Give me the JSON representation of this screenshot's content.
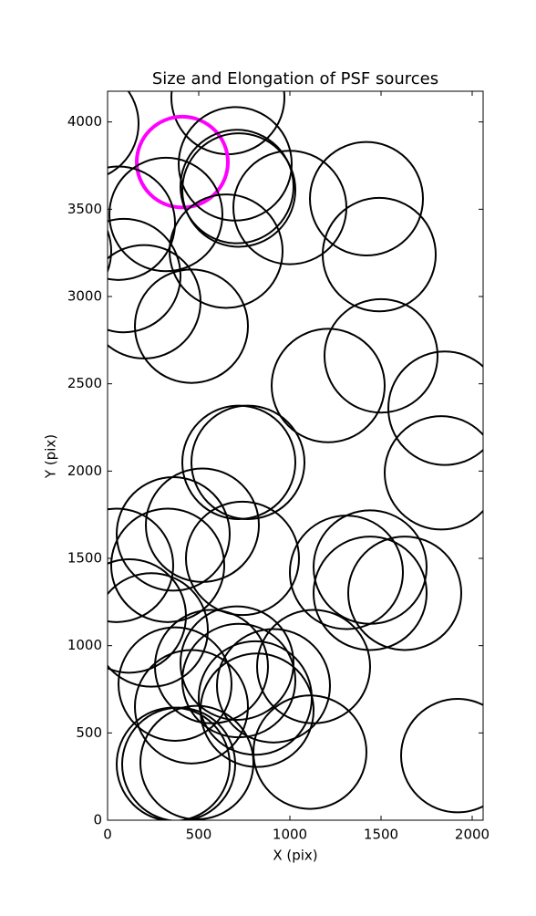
{
  "chart_data": {
    "type": "ellipse",
    "title": "Size and Elongation of PSF sources",
    "xlabel": "X (pix)",
    "ylabel": "Y (pix)",
    "x": [
      660,
      -140,
      410,
      700,
      710,
      720,
      1000,
      1420,
      320,
      60,
      650,
      1490,
      -290,
      90,
      460,
      200,
      1500,
      1210,
      1850,
      1830,
      720,
      770,
      520,
      360,
      50,
      740,
      330,
      1310,
      1440,
      1440,
      1630,
      120,
      240,
      570,
      370,
      710,
      720,
      810,
      820,
      1130,
      910,
      460,
      360,
      390,
      490,
      1110,
      1920
    ],
    "y": [
      4140,
      3990,
      3770,
      3760,
      3630,
      3610,
      3510,
      3560,
      3470,
      3420,
      3260,
      3240,
      3260,
      3120,
      2830,
      2970,
      2660,
      2490,
      2360,
      1990,
      2050,
      2050,
      1690,
      1640,
      1460,
      1500,
      1460,
      1420,
      1450,
      1300,
      1300,
      1170,
      1090,
      880,
      780,
      900,
      800,
      700,
      630,
      880,
      770,
      650,
      320,
      320,
      330,
      390,
      370
    ],
    "width": [
      620,
      620,
      500,
      620,
      620,
      620,
      620,
      620,
      620,
      620,
      620,
      620,
      620,
      620,
      620,
      620,
      620,
      620,
      620,
      620,
      620,
      620,
      620,
      620,
      620,
      620,
      620,
      620,
      620,
      620,
      620,
      620,
      620,
      620,
      620,
      620,
      620,
      620,
      620,
      620,
      620,
      620,
      620,
      620,
      620,
      620,
      620
    ],
    "height": [
      650,
      650,
      520,
      650,
      650,
      650,
      650,
      650,
      650,
      650,
      650,
      650,
      650,
      650,
      650,
      650,
      650,
      650,
      650,
      650,
      650,
      650,
      650,
      650,
      650,
      650,
      650,
      650,
      650,
      650,
      650,
      650,
      650,
      650,
      650,
      650,
      650,
      650,
      650,
      650,
      650,
      650,
      650,
      650,
      650,
      650,
      650
    ],
    "color": "#000000",
    "highlight_index": 2,
    "highlight_color": "#ff00ff",
    "xlim": [
      0,
      2060
    ],
    "ylim": [
      0,
      4176
    ],
    "xticks": [
      0,
      500,
      1000,
      1500,
      2000
    ],
    "yticks": [
      0,
      500,
      1000,
      1500,
      2000,
      2500,
      3000,
      3500,
      4000
    ],
    "grid": false
  }
}
